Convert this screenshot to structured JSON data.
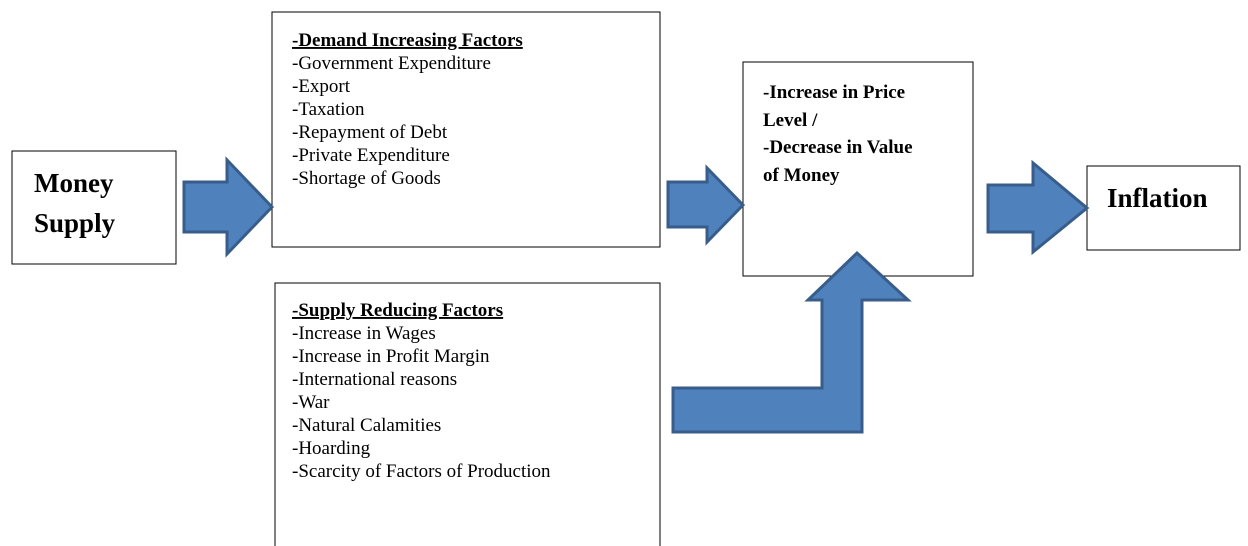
{
  "nodes": [
    {
      "label": [
        "Money",
        "Supply"
      ]
    },
    {
      "title": "-Demand Increasing Factors",
      "items": [
        "-Government Expenditure",
        "-Export",
        "-Taxation",
        "-Repayment of Debt",
        "-Private Expenditure",
        "-Shortage of Goods"
      ]
    },
    {
      "title": "-Supply Reducing Factors",
      "items": [
        "-Increase in Wages",
        "-Increase in Profit Margin",
        "-International reasons",
        "-War",
        "-Natural Calamities",
        "-Hoarding",
        "-Scarcity of Factors of Production"
      ]
    },
    {
      "label": [
        "-Increase in Price",
        "Level /",
        "-Decrease in Value",
        "of Money"
      ]
    },
    {
      "label": [
        "Inflation"
      ]
    }
  ]
}
